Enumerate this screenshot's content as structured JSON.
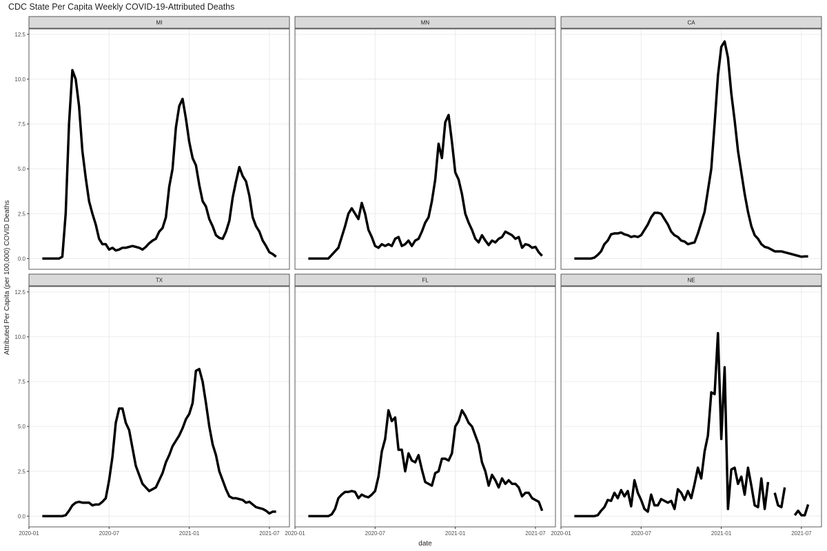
{
  "chart_data": {
    "type": "line",
    "title": "CDC State Per Capita Weekly COVID-19-Attributed Deaths",
    "xlabel": "date",
    "ylabel": "Attributed Per Capita (per 100,000) COVID Deaths",
    "xlim": [
      0,
      19.5
    ],
    "ylim": [
      -0.6,
      12.8
    ],
    "xticks": [
      {
        "value": 0,
        "label": "2020-01"
      },
      {
        "value": 6,
        "label": "2020-07"
      },
      {
        "value": 12,
        "label": "2021-01"
      },
      {
        "value": 18,
        "label": "2021-07"
      }
    ],
    "yticks": [
      {
        "value": 0,
        "label": "0.0"
      },
      2.5,
      {
        "value": 5,
        "label": "5.0"
      },
      7.5,
      {
        "value": 10,
        "label": "10.0"
      },
      12.5
    ],
    "grid": true,
    "x": [
      1,
      1.25,
      1.5,
      1.75,
      2,
      2.25,
      2.5,
      2.75,
      3,
      3.25,
      3.5,
      3.75,
      4,
      4.25,
      4.5,
      4.75,
      5,
      5.25,
      5.5,
      5.75,
      6,
      6.25,
      6.5,
      6.75,
      7,
      7.25,
      7.5,
      7.75,
      8,
      8.25,
      8.5,
      8.75,
      9,
      9.25,
      9.5,
      9.75,
      10,
      10.25,
      10.5,
      10.75,
      11,
      11.25,
      11.5,
      11.75,
      12,
      12.25,
      12.5,
      12.75,
      13,
      13.25,
      13.5,
      13.75,
      14,
      14.25,
      14.5,
      14.75,
      15,
      15.25,
      15.5,
      15.75,
      16,
      16.25,
      16.5,
      16.75,
      17,
      17.25,
      17.5,
      17.75,
      18,
      18.25,
      18.5
    ],
    "series": [
      {
        "name": "MI",
        "color": "#000000",
        "values": [
          0,
          0,
          0,
          0,
          0,
          0,
          0.1,
          2.5,
          7.5,
          10.5,
          10,
          8.5,
          6,
          4.5,
          3.2,
          2.5,
          1.9,
          1.1,
          0.8,
          0.8,
          0.5,
          0.6,
          0.45,
          0.5,
          0.6,
          0.6,
          0.65,
          0.7,
          0.65,
          0.6,
          0.5,
          0.65,
          0.85,
          1,
          1.1,
          1.5,
          1.7,
          2.3,
          4,
          5,
          7.3,
          8.5,
          8.9,
          7.8,
          6.5,
          5.6,
          5.2,
          4.1,
          3.2,
          2.9,
          2.2,
          1.8,
          1.3,
          1.15,
          1.1,
          1.5,
          2.1,
          3.4,
          4.3,
          5.1,
          4.6,
          4.3,
          3.5,
          2.3,
          1.8,
          1.5,
          1,
          0.7,
          0.35,
          0.25,
          0.1
        ]
      },
      {
        "name": "MN",
        "color": "#000000",
        "values": [
          0,
          0,
          0,
          0,
          0,
          0,
          0,
          0.2,
          0.4,
          0.6,
          1.2,
          1.8,
          2.5,
          2.8,
          2.5,
          2.2,
          3.1,
          2.5,
          1.6,
          1.2,
          0.7,
          0.6,
          0.8,
          0.7,
          0.8,
          0.7,
          1.1,
          1.2,
          0.7,
          0.8,
          1,
          0.7,
          1,
          1.1,
          1.5,
          2,
          2.3,
          3.2,
          4.4,
          6.4,
          5.6,
          7.6,
          8,
          6.5,
          4.8,
          4.4,
          3.6,
          2.5,
          2,
          1.6,
          1.1,
          0.9,
          1.3,
          1,
          0.75,
          1,
          0.9,
          1.1,
          1.2,
          1.5,
          1.4,
          1.3,
          1.1,
          1.2,
          0.6,
          0.8,
          0.75,
          0.6,
          0.65,
          0.35,
          0.15
        ]
      },
      {
        "name": "CA",
        "color": "#000000",
        "values": [
          0,
          0,
          0,
          0,
          0,
          0,
          0.05,
          0.2,
          0.4,
          0.8,
          1,
          1.35,
          1.4,
          1.4,
          1.45,
          1.35,
          1.3,
          1.2,
          1.25,
          1.2,
          1.3,
          1.6,
          1.9,
          2.3,
          2.55,
          2.55,
          2.5,
          2.2,
          1.9,
          1.5,
          1.3,
          1.2,
          1,
          0.95,
          0.8,
          0.85,
          0.9,
          1.4,
          2,
          2.6,
          3.8,
          5,
          7.5,
          10.2,
          11.8,
          12.1,
          11.2,
          9.2,
          7.7,
          6,
          4.8,
          3.6,
          2.6,
          1.8,
          1.3,
          1.1,
          0.8,
          0.65,
          0.6,
          0.5,
          0.4,
          0.4,
          0.4,
          0.35,
          0.3,
          0.25,
          0.2,
          0.15,
          0.1,
          0.12,
          0.12
        ]
      },
      {
        "name": "TX",
        "color": "#000000",
        "values": [
          0,
          0,
          0,
          0,
          0,
          0,
          0,
          0.05,
          0.3,
          0.6,
          0.75,
          0.8,
          0.75,
          0.75,
          0.75,
          0.6,
          0.65,
          0.65,
          0.8,
          1,
          2,
          3.3,
          5.2,
          6,
          6,
          5.2,
          4.8,
          3.8,
          2.8,
          2.3,
          1.8,
          1.6,
          1.4,
          1.5,
          1.6,
          2,
          2.4,
          3,
          3.4,
          3.9,
          4.2,
          4.5,
          4.9,
          5.4,
          5.7,
          6.3,
          8.1,
          8.2,
          7.5,
          6.3,
          5,
          4,
          3.4,
          2.5,
          2,
          1.5,
          1.1,
          1,
          1,
          0.95,
          0.9,
          0.75,
          0.8,
          0.65,
          0.5,
          0.45,
          0.4,
          0.3,
          0.15,
          0.25,
          0.25
        ]
      },
      {
        "name": "FL",
        "color": "#000000",
        "values": [
          0,
          0,
          0,
          0,
          0,
          0,
          0,
          0.1,
          0.4,
          1,
          1.2,
          1.35,
          1.35,
          1.4,
          1.35,
          1,
          1.2,
          1.1,
          1.05,
          1.2,
          1.4,
          2.2,
          3.6,
          4.3,
          5.9,
          5.3,
          5.5,
          3.7,
          3.7,
          2.5,
          3.5,
          3.1,
          3,
          3.4,
          2.6,
          1.9,
          1.8,
          1.7,
          2.4,
          2.5,
          3.2,
          3.2,
          3.1,
          3.5,
          5,
          5.3,
          5.9,
          5.6,
          5.2,
          5,
          4.5,
          4,
          3,
          2.5,
          1.7,
          2.3,
          2,
          1.6,
          2.1,
          1.8,
          2,
          1.8,
          1.8,
          1.6,
          1.1,
          1.3,
          1.3,
          1,
          0.9,
          0.8,
          0.3
        ]
      },
      {
        "name": "NE",
        "color": "#000000",
        "values": [
          0,
          0,
          0,
          0,
          0,
          0,
          0,
          0.05,
          0.3,
          0.5,
          0.9,
          0.85,
          1.3,
          1,
          1.45,
          1.1,
          1.4,
          0.55,
          2,
          1.3,
          0.9,
          0.4,
          0.25,
          1.2,
          0.6,
          0.6,
          0.95,
          0.85,
          0.75,
          0.85,
          0.4,
          1.5,
          1.3,
          0.9,
          1.4,
          1,
          1.8,
          2.7,
          2.1,
          3.6,
          4.5,
          6.9,
          6.8,
          10.2,
          4.3,
          8.3,
          0.4,
          2.6,
          2.7,
          1.8,
          2.2,
          1.2,
          2.7,
          1.7,
          0.6,
          0.5,
          2.1,
          0.4,
          1.9,
          null,
          1.3,
          0.6,
          0.5,
          1.6,
          null,
          null,
          0.05,
          0.3,
          0.05,
          0.05,
          0.65
        ]
      }
    ]
  }
}
